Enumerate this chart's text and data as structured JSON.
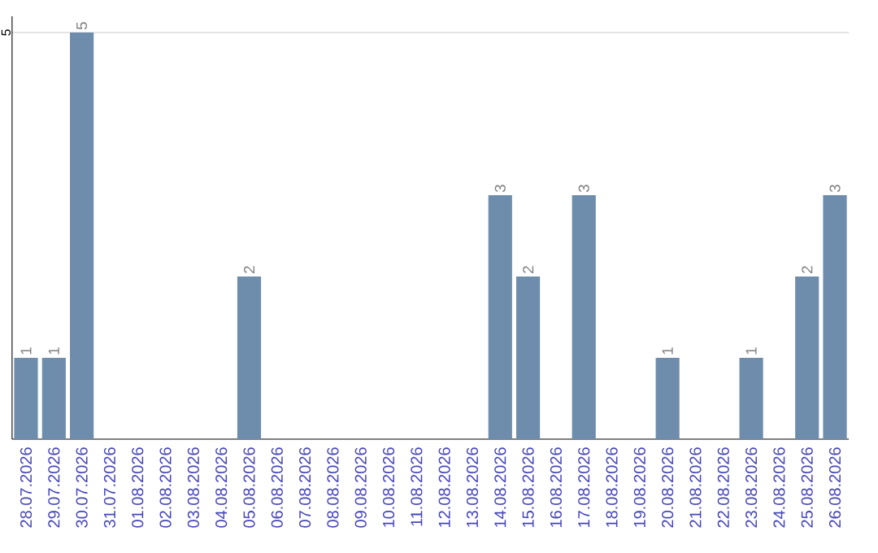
{
  "chart_data": {
    "type": "bar",
    "categories": [
      "28.07.2026",
      "29.07.2026",
      "30.07.2026",
      "31.07.2026",
      "01.08.2026",
      "02.08.2026",
      "03.08.2026",
      "04.08.2026",
      "05.08.2026",
      "06.08.2026",
      "07.08.2026",
      "08.08.2026",
      "09.08.2026",
      "10.08.2026",
      "11.08.2026",
      "12.08.2026",
      "13.08.2026",
      "14.08.2026",
      "15.08.2026",
      "16.08.2026",
      "17.08.2026",
      "18.08.2026",
      "19.08.2026",
      "20.08.2026",
      "21.08.2026",
      "22.08.2026",
      "23.08.2026",
      "24.08.2026",
      "25.08.2026",
      "26.08.2026"
    ],
    "values": [
      1,
      1,
      5,
      0,
      0,
      0,
      0,
      0,
      2,
      0,
      0,
      0,
      0,
      0,
      0,
      0,
      0,
      3,
      2,
      0,
      3,
      0,
      0,
      1,
      0,
      0,
      1,
      0,
      2,
      3
    ],
    "value_labels": [
      "1",
      "1",
      "5",
      null,
      null,
      null,
      null,
      null,
      "2",
      null,
      null,
      null,
      null,
      null,
      null,
      null,
      null,
      "3",
      "2",
      null,
      "3",
      null,
      null,
      "1",
      null,
      null,
      "1",
      null,
      "2",
      "3"
    ],
    "color": "#6e8cab",
    "ylim": [
      0,
      5.2
    ],
    "yticks": [
      5
    ],
    "grid": "y"
  }
}
